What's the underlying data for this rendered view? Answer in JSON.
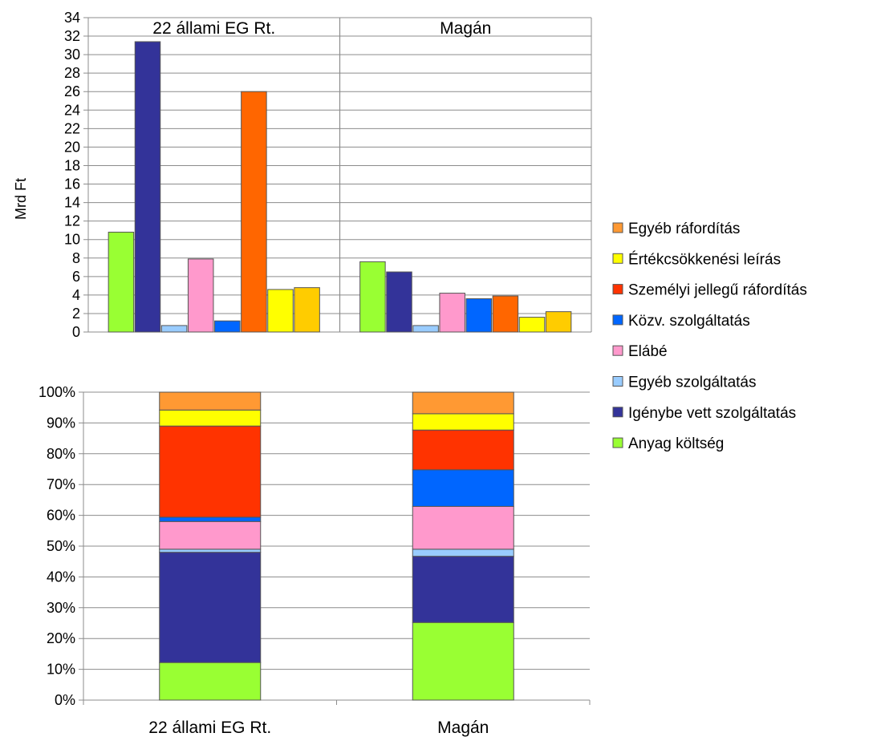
{
  "chart_data": [
    {
      "type": "bar",
      "ylabel": "Mrd Ft",
      "ylim": [
        0,
        34
      ],
      "yticks": [
        0,
        2,
        4,
        6,
        8,
        10,
        12,
        14,
        16,
        18,
        20,
        22,
        24,
        26,
        28,
        30,
        32,
        34
      ],
      "grid": true,
      "categories": [
        "22 állami EG Rt.",
        "Magán"
      ],
      "series": [
        {
          "name": "Anyag költség",
          "color": "#99ff33",
          "values": [
            10.8,
            7.6
          ]
        },
        {
          "name": "Igénybe vett szolgáltatás",
          "color": "#333399",
          "values": [
            31.4,
            6.5
          ]
        },
        {
          "name": "Egyéb szolgáltatás",
          "color": "#99ccff",
          "values": [
            0.7,
            0.7
          ]
        },
        {
          "name": "Elábé",
          "color": "#ff99cc",
          "values": [
            7.9,
            4.2
          ]
        },
        {
          "name": "Közv. szolgáltatás",
          "color": "#0066ff",
          "values": [
            1.2,
            3.6
          ]
        },
        {
          "name": "Személyi jellegű ráfordítás",
          "color": "#ff6600",
          "values": [
            26.0,
            3.9
          ]
        },
        {
          "name": "Értékcsökkenési leírás",
          "color": "#ffff00",
          "values": [
            4.6,
            1.6
          ]
        },
        {
          "name": "Egyéb ráfordítás",
          "color": "#ffcc00",
          "values": [
            4.8,
            2.2
          ]
        }
      ]
    },
    {
      "type": "bar",
      "stacked": "percent",
      "ylim": [
        0,
        100
      ],
      "yticks": [
        "0%",
        "10%",
        "20%",
        "30%",
        "40%",
        "50%",
        "60%",
        "70%",
        "80%",
        "90%",
        "100%"
      ],
      "grid": true,
      "categories": [
        "22 állami EG Rt.",
        "Magán"
      ],
      "series": [
        {
          "name": "Anyag költség",
          "color": "#99ff33",
          "values": [
            12.2,
            25.2
          ]
        },
        {
          "name": "Igénybe vett szolgáltatás",
          "color": "#333399",
          "values": [
            35.8,
            21.5
          ]
        },
        {
          "name": "Egyéb szolgáltatás",
          "color": "#99ccff",
          "values": [
            1.0,
            2.3
          ]
        },
        {
          "name": "Elábé",
          "color": "#ff99cc",
          "values": [
            9.0,
            13.9
          ]
        },
        {
          "name": "Közv. szolgáltatás",
          "color": "#0066ff",
          "values": [
            1.4,
            11.9
          ]
        },
        {
          "name": "Személyi jellegű ráfordítás",
          "color": "#ff3300",
          "values": [
            29.6,
            12.9
          ]
        },
        {
          "name": "Értékcsökkenési leírás",
          "color": "#ffff00",
          "values": [
            5.2,
            5.3
          ]
        },
        {
          "name": "Egyéb ráfordítás",
          "color": "#ff9933",
          "values": [
            5.8,
            7.0
          ]
        }
      ]
    }
  ],
  "legend": {
    "placement": "right",
    "items": [
      {
        "label": "Egyéb ráfordítás",
        "color": "#ff9933"
      },
      {
        "label": "Értékcsökkenési leírás",
        "color": "#ffff00"
      },
      {
        "label": "Személyi jellegű ráfordítás",
        "color": "#ff3300"
      },
      {
        "label": "Közv. szolgáltatás",
        "color": "#0066ff"
      },
      {
        "label": "Elábé",
        "color": "#ff99cc"
      },
      {
        "label": "Egyéb szolgáltatás",
        "color": "#99ccff"
      },
      {
        "label": "Igénybe vett szolgáltatás",
        "color": "#333399"
      },
      {
        "label": "Anyag költség",
        "color": "#99ff33"
      }
    ]
  }
}
